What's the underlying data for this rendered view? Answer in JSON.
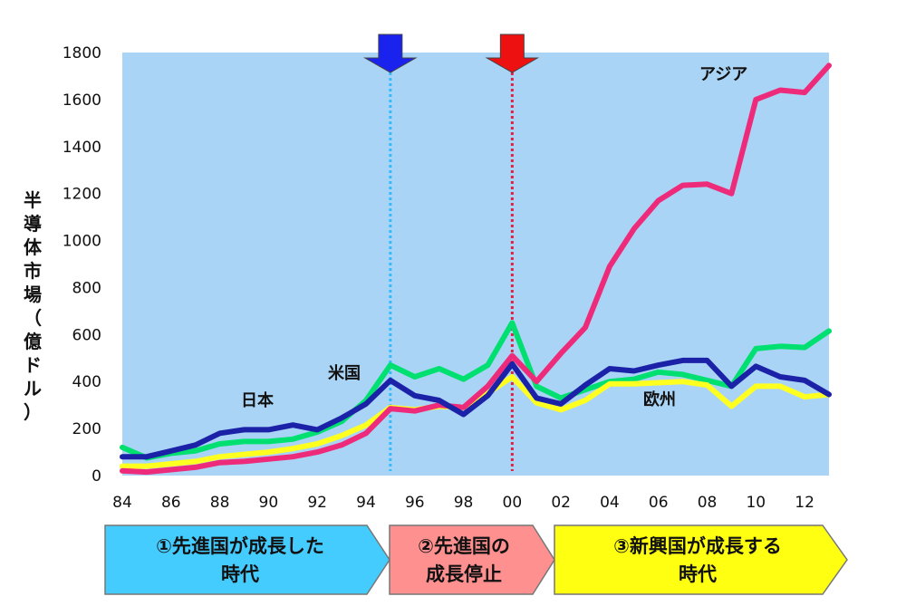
{
  "chart_data": {
    "type": "line",
    "title": "",
    "xlabel": "",
    "ylabel": "半導体市場（億ドル）",
    "x": [
      1984,
      1985,
      1986,
      1987,
      1988,
      1989,
      1990,
      1991,
      1992,
      1993,
      1994,
      1995,
      1996,
      1997,
      1998,
      1999,
      2000,
      2001,
      2002,
      2003,
      2004,
      2005,
      2006,
      2007,
      2008,
      2009,
      2010,
      2011,
      2012,
      2013
    ],
    "xlim": [
      1984,
      2013
    ],
    "xticks": [
      "84",
      "86",
      "88",
      "90",
      "92",
      "94",
      "96",
      "98",
      "00",
      "02",
      "04",
      "06",
      "08",
      "10",
      "12"
    ],
    "ylim": [
      0,
      1800
    ],
    "yticks": [
      "0",
      "200",
      "400",
      "600",
      "800",
      "1000",
      "1200",
      "1400",
      "1600",
      "1800"
    ],
    "grid": false,
    "legend": "none",
    "plot_background": "#aad4f5",
    "series": [
      {
        "name": "日本",
        "color": "#00e070",
        "values": [
          120,
          75,
          95,
          105,
          135,
          145,
          145,
          155,
          185,
          230,
          320,
          470,
          420,
          455,
          410,
          470,
          650,
          380,
          330,
          365,
          400,
          410,
          440,
          430,
          405,
          380,
          540,
          550,
          545,
          615
        ]
      },
      {
        "name": "欧州",
        "color": "#ffff20",
        "values": [
          40,
          40,
          50,
          60,
          80,
          90,
          100,
          115,
          135,
          170,
          215,
          290,
          280,
          295,
          290,
          350,
          420,
          310,
          280,
          320,
          390,
          390,
          395,
          400,
          385,
          295,
          380,
          380,
          335,
          345
        ]
      },
      {
        "name": "アジア",
        "color": "#ee2b7a",
        "values": [
          20,
          15,
          25,
          35,
          55,
          60,
          70,
          80,
          100,
          130,
          180,
          285,
          275,
          300,
          290,
          380,
          510,
          400,
          520,
          630,
          890,
          1050,
          1170,
          1235,
          1240,
          1200,
          1600,
          1640,
          1630,
          1745
        ]
      },
      {
        "name": "米国",
        "color": "#1c22a8",
        "values": [
          80,
          80,
          105,
          130,
          180,
          195,
          195,
          215,
          195,
          245,
          305,
          405,
          340,
          320,
          260,
          340,
          475,
          330,
          305,
          385,
          455,
          445,
          470,
          490,
          490,
          380,
          465,
          420,
          405,
          345
        ]
      }
    ],
    "markers": [
      {
        "x": 1995,
        "color": "#1a22ee",
        "line_color": "#33bbff"
      },
      {
        "x": 2000,
        "color": "#ee1111",
        "line_color": "#dd2244"
      }
    ]
  },
  "eras": [
    {
      "label_line1": "①先進国が成長した",
      "label_line2": "時代",
      "color": "#44ccff"
    },
    {
      "label_line1": "②先進国の",
      "label_line2": "成長停止",
      "color": "#ff9090"
    },
    {
      "label_line1": "③新興国が成長する",
      "label_line2": "時代",
      "color": "#ffff11"
    }
  ]
}
